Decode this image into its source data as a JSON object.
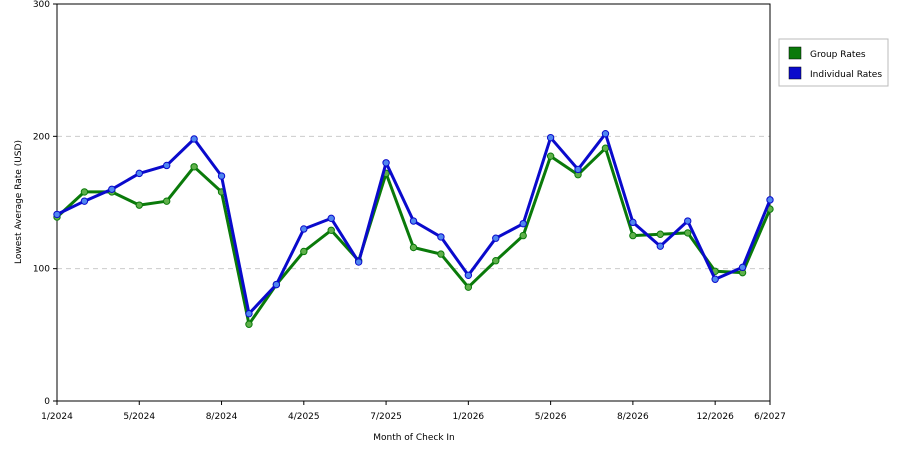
{
  "chart_data": {
    "type": "line",
    "title": "",
    "xlabel": "Month of Check In",
    "ylabel": "Lowest Average Rate (USD)",
    "ylim": [
      0,
      300
    ],
    "yticks": [
      0,
      100,
      200,
      300
    ],
    "grid": "horizontal dashed",
    "legend_position": "right",
    "x_tick_labels": [
      {
        "index": 0,
        "label": "1/2024"
      },
      {
        "index": 3,
        "label": "5/2024"
      },
      {
        "index": 6,
        "label": "8/2024"
      },
      {
        "index": 9,
        "label": "4/2025"
      },
      {
        "index": 12,
        "label": "7/2025"
      },
      {
        "index": 15,
        "label": "1/2026"
      },
      {
        "index": 18,
        "label": "5/2026"
      },
      {
        "index": 21,
        "label": "8/2026"
      },
      {
        "index": 24,
        "label": "12/2026"
      },
      {
        "index": 26,
        "label": "6/2027"
      }
    ],
    "series": [
      {
        "name": "Group Rates",
        "color": "#0a7a0a",
        "marker_color": "#5fb04a",
        "values": [
          139,
          158,
          158,
          148,
          151,
          177,
          158,
          58,
          88,
          113,
          129,
          106,
          172,
          116,
          111,
          86,
          106,
          125,
          185,
          171,
          191,
          125,
          126,
          127,
          98,
          97,
          145
        ]
      },
      {
        "name": "Individual Rates",
        "color": "#0a0acc",
        "marker_color": "#4f86f0",
        "values": [
          141,
          151,
          160,
          172,
          178,
          198,
          170,
          66,
          88,
          130,
          138,
          105,
          180,
          136,
          124,
          95,
          123,
          134,
          199,
          175,
          202,
          135,
          117,
          136,
          92,
          101,
          152
        ]
      }
    ]
  }
}
